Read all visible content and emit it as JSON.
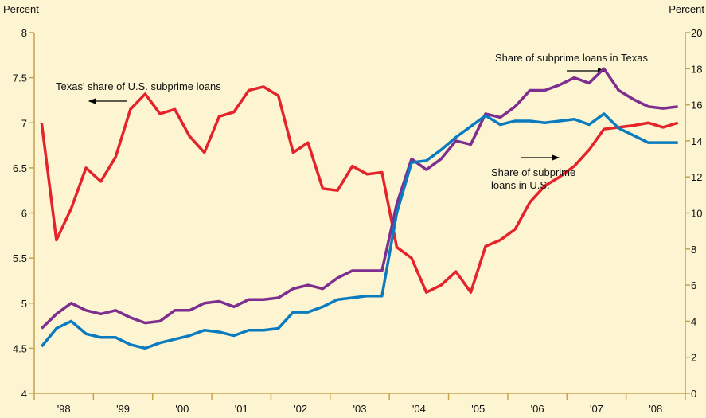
{
  "chart_data": {
    "type": "line",
    "y_label": "Percent",
    "y2_label": "Percent",
    "x": [
      1998.125,
      1998.375,
      1998.625,
      1998.875,
      1999.125,
      1999.375,
      1999.625,
      1999.875,
      2000.125,
      2000.375,
      2000.625,
      2000.875,
      2001.125,
      2001.375,
      2001.625,
      2001.875,
      2002.125,
      2002.375,
      2002.625,
      2002.875,
      2003.125,
      2003.375,
      2003.625,
      2003.875,
      2004.125,
      2004.375,
      2004.625,
      2004.875,
      2005.125,
      2005.375,
      2005.625,
      2005.875,
      2006.125,
      2006.375,
      2006.625,
      2006.875,
      2007.125,
      2007.375,
      2007.625,
      2007.875,
      2008.125,
      2008.375,
      2008.625,
      2008.875
    ],
    "xlim": [
      1998,
      2009
    ],
    "xticks": [
      {
        "value": 1998.5,
        "label": "'98"
      },
      {
        "value": 1999.5,
        "label": "'99"
      },
      {
        "value": 2000.5,
        "label": "'00"
      },
      {
        "value": 2001.5,
        "label": "'01"
      },
      {
        "value": 2002.5,
        "label": "'02"
      },
      {
        "value": 2003.5,
        "label": "'03"
      },
      {
        "value": 2004.5,
        "label": "'04"
      },
      {
        "value": 2005.5,
        "label": "'05"
      },
      {
        "value": 2006.5,
        "label": "'06"
      },
      {
        "value": 2007.5,
        "label": "'07"
      },
      {
        "value": 2008.5,
        "label": "'08"
      }
    ],
    "ylim": [
      4,
      8
    ],
    "yticks": [
      4,
      4.5,
      5,
      5.5,
      6,
      6.5,
      7,
      7.5,
      8
    ],
    "y2lim": [
      0,
      20
    ],
    "y2ticks": [
      0,
      2,
      4,
      6,
      8,
      10,
      12,
      14,
      16,
      18,
      20
    ],
    "grid": false,
    "series": [
      {
        "color": "#e4232b",
        "values": [
          7.0,
          5.7,
          6.05,
          6.5,
          6.35,
          6.62,
          7.15,
          7.32,
          7.1,
          7.15,
          6.85,
          6.67,
          7.07,
          7.12,
          7.36,
          7.4,
          7.3,
          6.67,
          6.78,
          6.27,
          6.25,
          6.52,
          6.43,
          6.45,
          5.62,
          5.5,
          5.12,
          5.2,
          5.35,
          5.12,
          5.63,
          5.7,
          5.82,
          6.12,
          6.3,
          6.4,
          6.52,
          6.7,
          6.93,
          6.95,
          6.97,
          7.0,
          6.95,
          7.0
        ]
      },
      {
        "color": "#7d2e8f",
        "axis": "y2",
        "values": [
          3.6,
          4.4,
          5.0,
          4.6,
          4.4,
          4.6,
          4.2,
          3.9,
          4.0,
          4.6,
          4.6,
          5.0,
          5.1,
          4.8,
          5.2,
          5.2,
          5.3,
          5.8,
          6.0,
          5.8,
          6.4,
          6.8,
          6.8,
          6.8,
          10.5,
          13.0,
          12.4,
          13.0,
          14.0,
          13.8,
          15.5,
          15.3,
          15.9,
          16.8,
          16.8,
          17.1,
          17.5,
          17.2,
          18.0,
          16.8,
          16.3,
          15.9,
          15.8,
          15.9
        ]
      },
      {
        "color": "#0b7bc0",
        "axis": "y2",
        "values": [
          2.6,
          3.6,
          4.0,
          3.3,
          3.1,
          3.1,
          2.7,
          2.5,
          2.8,
          3.0,
          3.2,
          3.5,
          3.4,
          3.2,
          3.5,
          3.5,
          3.6,
          4.5,
          4.5,
          4.8,
          5.2,
          5.3,
          5.4,
          5.4,
          10.0,
          12.8,
          12.9,
          13.5,
          14.2,
          14.8,
          15.4,
          14.9,
          15.1,
          15.1,
          15.0,
          15.1,
          15.2,
          14.9,
          15.5,
          14.7,
          14.3,
          13.9,
          13.9,
          13.9
        ]
      }
    ],
    "annotations": [
      {
        "lines": [
          "Texas' share of U.S. subprime loans"
        ]
      },
      {
        "lines": [
          "Share of subprime loans in Texas"
        ]
      },
      {
        "lines": [
          "Share of subprime",
          "loans in U.S."
        ]
      }
    ]
  }
}
